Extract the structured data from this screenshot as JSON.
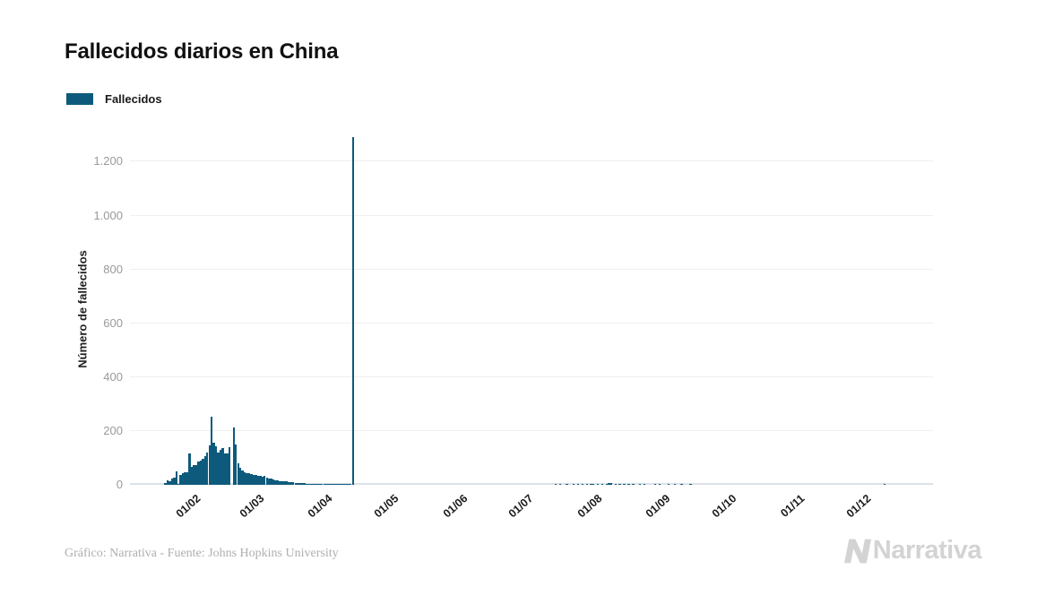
{
  "page": {
    "title": "Fallecidos diarios en China"
  },
  "legend": {
    "label": "Fallecidos",
    "swatch_color": "#0e5a7c"
  },
  "footer": {
    "credit": "Gráfico: Narrativa - Fuente: Johns Hopkins University",
    "brand_name": "Narrativa"
  },
  "chart_data": {
    "type": "bar",
    "title": "Fallecidos diarios en China",
    "xlabel": "",
    "ylabel": "Número de fallecidos",
    "ylim": [
      0,
      1300
    ],
    "grid": true,
    "legend_position": "top-left",
    "bar_color": "#0e5a7c",
    "yticks": [
      {
        "value": 0,
        "label": "0"
      },
      {
        "value": 200,
        "label": "200"
      },
      {
        "value": 400,
        "label": "400"
      },
      {
        "value": 600,
        "label": "600"
      },
      {
        "value": 800,
        "label": "800"
      },
      {
        "value": 1000,
        "label": "1.000"
      },
      {
        "value": 1200,
        "label": "1.200"
      }
    ],
    "xticks": [
      {
        "label": "01/02",
        "date": "2020-02-01"
      },
      {
        "label": "01/03",
        "date": "2020-03-01"
      },
      {
        "label": "01/04",
        "date": "2020-04-01"
      },
      {
        "label": "01/05",
        "date": "2020-05-01"
      },
      {
        "label": "01/06",
        "date": "2020-06-01"
      },
      {
        "label": "01/07",
        "date": "2020-07-01"
      },
      {
        "label": "01/08",
        "date": "2020-08-01"
      },
      {
        "label": "01/09",
        "date": "2020-09-01"
      },
      {
        "label": "01/10",
        "date": "2020-10-01"
      },
      {
        "label": "01/11",
        "date": "2020-11-01"
      },
      {
        "label": "01/12",
        "date": "2020-12-01"
      }
    ],
    "series": [
      {
        "name": "Fallecidos",
        "points": [
          [
            "2020-01-23",
            8
          ],
          [
            "2020-01-24",
            16
          ],
          [
            "2020-01-25",
            15
          ],
          [
            "2020-01-26",
            24
          ],
          [
            "2020-01-27",
            26
          ],
          [
            "2020-01-28",
            49
          ],
          [
            "2020-01-29",
            2
          ],
          [
            "2020-01-30",
            38
          ],
          [
            "2020-01-31",
            43
          ],
          [
            "2020-02-01",
            46
          ],
          [
            "2020-02-02",
            45
          ],
          [
            "2020-02-03",
            115
          ],
          [
            "2020-02-04",
            65
          ],
          [
            "2020-02-05",
            73
          ],
          [
            "2020-02-06",
            73
          ],
          [
            "2020-02-07",
            86
          ],
          [
            "2020-02-08",
            89
          ],
          [
            "2020-02-09",
            97
          ],
          [
            "2020-02-10",
            108
          ],
          [
            "2020-02-11",
            120
          ],
          [
            "2020-02-12",
            146
          ],
          [
            "2020-02-13",
            254
          ],
          [
            "2020-02-14",
            155
          ],
          [
            "2020-02-15",
            143
          ],
          [
            "2020-02-16",
            120
          ],
          [
            "2020-02-17",
            130
          ],
          [
            "2020-02-18",
            136
          ],
          [
            "2020-02-19",
            115
          ],
          [
            "2020-02-20",
            118
          ],
          [
            "2020-02-21",
            140
          ],
          [
            "2020-02-22",
            0
          ],
          [
            "2020-02-23",
            214
          ],
          [
            "2020-02-24",
            150
          ],
          [
            "2020-02-25",
            80
          ],
          [
            "2020-02-26",
            62
          ],
          [
            "2020-02-27",
            52
          ],
          [
            "2020-02-28",
            47
          ],
          [
            "2020-02-29",
            44
          ],
          [
            "2020-03-01",
            42
          ],
          [
            "2020-03-02",
            40
          ],
          [
            "2020-03-03",
            38
          ],
          [
            "2020-03-04",
            36
          ],
          [
            "2020-03-05",
            34
          ],
          [
            "2020-03-06",
            32
          ],
          [
            "2020-03-07",
            30
          ],
          [
            "2020-03-08",
            34
          ],
          [
            "2020-03-09",
            28
          ],
          [
            "2020-03-10",
            25
          ],
          [
            "2020-03-11",
            22
          ],
          [
            "2020-03-12",
            20
          ],
          [
            "2020-03-13",
            18
          ],
          [
            "2020-03-14",
            16
          ],
          [
            "2020-03-15",
            15
          ],
          [
            "2020-03-16",
            14
          ],
          [
            "2020-03-17",
            13
          ],
          [
            "2020-03-18",
            12
          ],
          [
            "2020-03-19",
            11
          ],
          [
            "2020-03-20",
            10
          ],
          [
            "2020-03-21",
            9
          ],
          [
            "2020-03-22",
            8
          ],
          [
            "2020-03-23",
            8
          ],
          [
            "2020-03-24",
            7
          ],
          [
            "2020-03-25",
            6
          ],
          [
            "2020-03-26",
            6
          ],
          [
            "2020-03-27",
            5
          ],
          [
            "2020-03-28",
            5
          ],
          [
            "2020-03-29",
            5
          ],
          [
            "2020-03-30",
            4
          ],
          [
            "2020-03-31",
            4
          ],
          [
            "2020-04-01",
            4
          ],
          [
            "2020-04-02",
            4
          ],
          [
            "2020-04-03",
            3
          ],
          [
            "2020-04-04",
            3
          ],
          [
            "2020-04-05",
            3
          ],
          [
            "2020-04-06",
            2
          ],
          [
            "2020-04-07",
            2
          ],
          [
            "2020-04-08",
            2
          ],
          [
            "2020-04-09",
            2
          ],
          [
            "2020-04-10",
            1
          ],
          [
            "2020-04-11",
            1
          ],
          [
            "2020-04-12",
            1
          ],
          [
            "2020-04-13",
            1
          ],
          [
            "2020-04-14",
            1
          ],
          [
            "2020-04-15",
            1
          ],
          [
            "2020-04-16",
            1
          ],
          [
            "2020-04-17",
            1290
          ],
          [
            "2020-07-18",
            3
          ],
          [
            "2020-07-20",
            2
          ],
          [
            "2020-07-23",
            3
          ],
          [
            "2020-07-26",
            4
          ],
          [
            "2020-07-28",
            3
          ],
          [
            "2020-07-30",
            4
          ],
          [
            "2020-08-01",
            4
          ],
          [
            "2020-08-03",
            5
          ],
          [
            "2020-08-04",
            5
          ],
          [
            "2020-08-06",
            4
          ],
          [
            "2020-08-08",
            4
          ],
          [
            "2020-08-10",
            5
          ],
          [
            "2020-08-11",
            6
          ],
          [
            "2020-08-12",
            6
          ],
          [
            "2020-08-14",
            5
          ],
          [
            "2020-08-16",
            4
          ],
          [
            "2020-08-18",
            4
          ],
          [
            "2020-08-20",
            3
          ],
          [
            "2020-08-22",
            4
          ],
          [
            "2020-08-25",
            3
          ],
          [
            "2020-08-27",
            3
          ],
          [
            "2020-09-01",
            3
          ],
          [
            "2020-09-03",
            2
          ],
          [
            "2020-09-07",
            4
          ],
          [
            "2020-09-10",
            3
          ],
          [
            "2020-09-13",
            2
          ],
          [
            "2020-09-17",
            3
          ],
          [
            "2020-12-14",
            4
          ]
        ]
      }
    ]
  }
}
